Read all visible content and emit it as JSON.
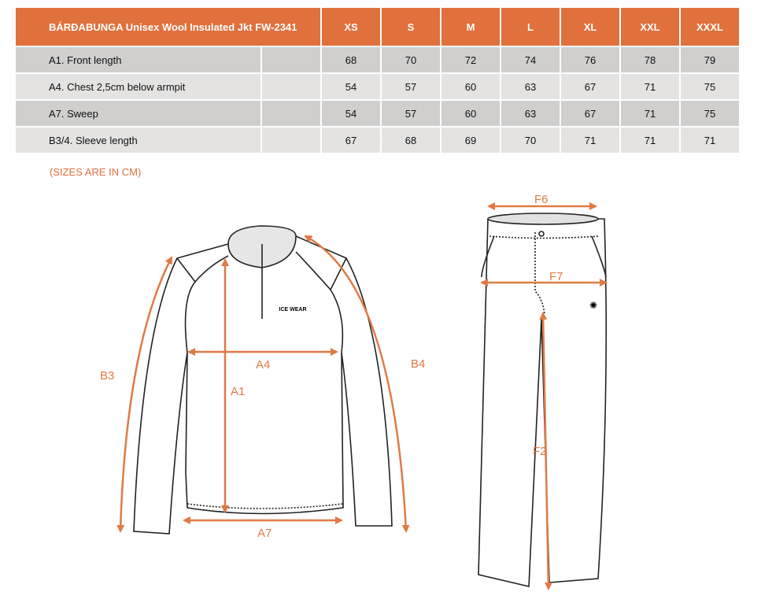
{
  "table": {
    "title": "BÁRÐABUNGA Unisex Wool Insulated Jkt FW-2341",
    "sizes": [
      "XS",
      "S",
      "M",
      "L",
      "XL",
      "XXL",
      "XXXL"
    ],
    "rows": [
      {
        "label": "A1. Front length",
        "values": [
          "68",
          "70",
          "72",
          "74",
          "76",
          "78",
          "79"
        ]
      },
      {
        "label": "A4. Chest 2,5cm below armpit",
        "values": [
          "54",
          "57",
          "60",
          "63",
          "67",
          "71",
          "75"
        ]
      },
      {
        "label": "A7. Sweep",
        "values": [
          "54",
          "57",
          "60",
          "63",
          "67",
          "71",
          "75"
        ]
      },
      {
        "label": "B3/4. Sleeve length",
        "values": [
          "67",
          "68",
          "69",
          "70",
          "71",
          "71",
          "71"
        ]
      }
    ]
  },
  "note": "(SIZES ARE IN CM)",
  "diagram": {
    "labels": {
      "a1": "A1",
      "a4": "A4",
      "a7": "A7",
      "b3": "B3",
      "b4": "B4",
      "f2": "F2",
      "f6": "F6",
      "f7": "F7"
    },
    "logo": "ICE WEAR",
    "accent": "#e07a45"
  }
}
